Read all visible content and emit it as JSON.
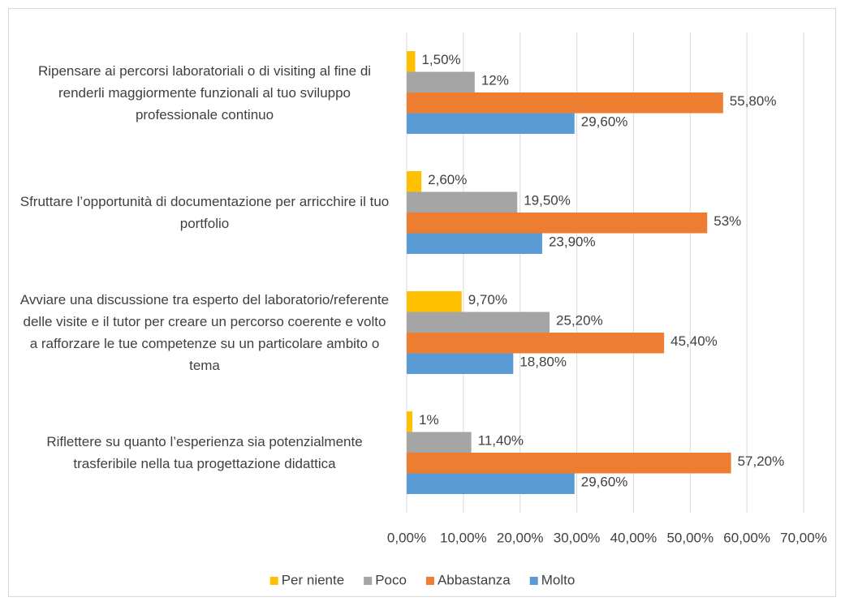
{
  "chart_data": {
    "type": "bar",
    "orientation": "horizontal",
    "categories": [
      "Ripensare ai percorsi laboratoriali o di visiting al fine di renderli maggiormente funzionali al tuo sviluppo professionale continuo",
      "Sfruttare l’opportunità di documentazione per arricchire il tuo portfolio",
      "Avviare una discussione tra esperto del laboratorio/referente delle visite e il tutor per creare un percorso coerente e volto a rafforzare le tue competenze su un particolare ambito o tema",
      "Riflettere su quanto l’esperienza sia potenzialmente trasferibile nella tua progettazione didattica"
    ],
    "series": [
      {
        "name": "Per niente",
        "color": "#FFC000",
        "values": [
          1.5,
          2.6,
          9.7,
          1
        ],
        "value_labels": [
          "1,50%",
          "2,60%",
          "9,70%",
          "1%"
        ]
      },
      {
        "name": "Poco",
        "color": "#A5A5A5",
        "values": [
          12,
          19.5,
          25.2,
          11.4
        ],
        "value_labels": [
          "12%",
          "19,50%",
          "25,20%",
          "11,40%"
        ]
      },
      {
        "name": "Abbastanza",
        "color": "#ED7D31",
        "values": [
          55.8,
          53,
          45.4,
          57.2
        ],
        "value_labels": [
          "55,80%",
          "53%",
          "45,40%",
          "57,20%"
        ]
      },
      {
        "name": "Molto",
        "color": "#5B9BD5",
        "values": [
          29.6,
          23.9,
          18.8,
          29.6
        ],
        "value_labels": [
          "29,60%",
          "23,90%",
          "18,80%",
          "29,60%"
        ]
      }
    ],
    "xlim": [
      0,
      70
    ],
    "xticks": [
      {
        "value": 0,
        "label": "0,00%"
      },
      {
        "value": 10,
        "label": "10,00%"
      },
      {
        "value": 20,
        "label": "20,00%"
      },
      {
        "value": 30,
        "label": "30,00%"
      },
      {
        "value": 40,
        "label": "40,00%"
      },
      {
        "value": 50,
        "label": "50,00%"
      },
      {
        "value": 60,
        "label": "60,00%"
      },
      {
        "value": 70,
        "label": "70,00%"
      }
    ],
    "grid": true,
    "legend": "bottom"
  }
}
